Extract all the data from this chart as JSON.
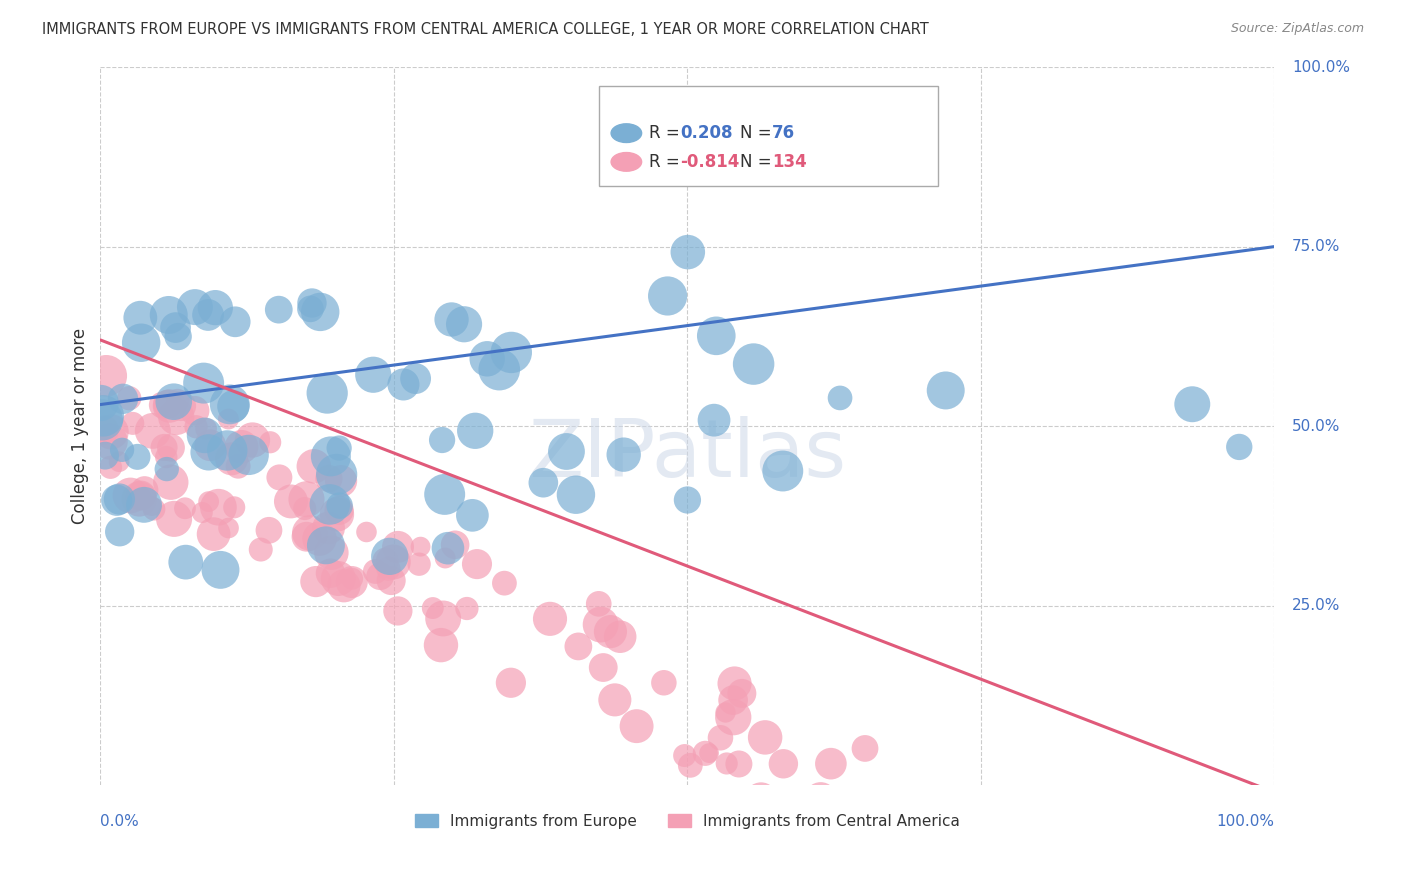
{
  "title": "IMMIGRANTS FROM EUROPE VS IMMIGRANTS FROM CENTRAL AMERICA COLLEGE, 1 YEAR OR MORE CORRELATION CHART",
  "source": "Source: ZipAtlas.com",
  "ylabel": "College, 1 year or more",
  "legend_europe_label": "Immigrants from Europe",
  "legend_ca_label": "Immigrants from Central America",
  "R_europe": "0.208",
  "N_europe": "76",
  "R_ca": "-0.814",
  "N_ca": "134",
  "europe_color": "#7bafd4",
  "ca_color": "#f4a0b5",
  "europe_line_color": "#4472c4",
  "ca_line_color": "#e05a7a",
  "axis_label_color": "#4472c4",
  "background_color": "#ffffff",
  "watermark": "ZIPatlas",
  "eu_intercept": 0.53,
  "eu_slope": 0.22,
  "ca_intercept": 0.62,
  "ca_slope": -0.63,
  "right_ytick_vals": [
    0.25,
    0.5,
    0.75,
    1.0
  ],
  "right_ytick_labels": [
    "25.0%",
    "50.0%",
    "75.0%",
    "100.0%"
  ]
}
